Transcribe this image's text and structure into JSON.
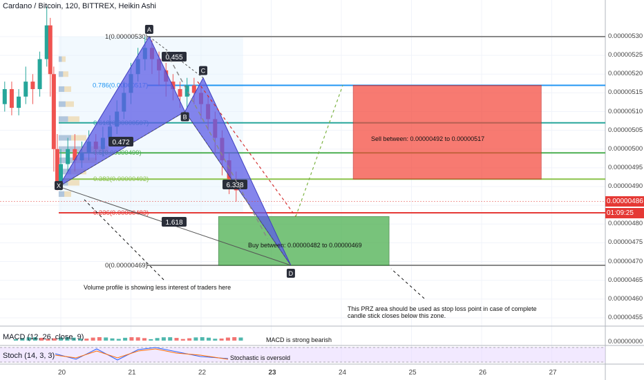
{
  "header": {
    "title": "Cardano / Bitcoin, 120, BITTREX, Heikin Ashi"
  },
  "y_axis": {
    "ticks": [
      "0.00000530",
      "0.00000525",
      "0.00000520",
      "0.00000515",
      "0.00000510",
      "0.00000505",
      "0.00000500",
      "0.00000495",
      "0.00000490",
      "0.00000485",
      "0.00000480",
      "0.00000475",
      "0.00000470",
      "0.00000465",
      "0.00000460",
      "0.00000455"
    ],
    "current_price": "0.00000486",
    "countdown": "01:09:25",
    "current_price_color": "#e53935"
  },
  "x_axis": {
    "ticks": [
      "20",
      "21",
      "22",
      "23",
      "24",
      "25",
      "26",
      "27"
    ]
  },
  "fib": {
    "levels": [
      {
        "label": "1(0.00000530)",
        "color": "#888888"
      },
      {
        "label": "0.786(0.00000517)",
        "color": "#2196f3"
      },
      {
        "label": "0.618(0.00000507)",
        "color": "#26a69a"
      },
      {
        "label": "0.5(0.00000499)",
        "color": "#4caf50"
      },
      {
        "label": "0.382(0.00000492)",
        "color": "#8bc34a"
      },
      {
        "label": "0.236(0.00000483)",
        "color": "#e53935"
      },
      {
        "label": "0(0.00000469)",
        "color": "#888888"
      }
    ]
  },
  "pattern": {
    "points": [
      "X",
      "A",
      "B",
      "C",
      "D"
    ],
    "ratios": [
      "0.455",
      "0.472",
      "6.338",
      "1.618"
    ],
    "fill_color": "#5c5ce6"
  },
  "zones": {
    "sell": {
      "label": "Sell between: 0.00000492 to 0.00000517",
      "color": "#f44336"
    },
    "buy": {
      "label": "Buy between: 0.00000482 to 0.00000469",
      "color": "#4caf50"
    }
  },
  "annotations": {
    "volume": "Volume profile is showing less interest of traders here",
    "prz_line1": "This PRZ area should be used as stop loss point in case of complete",
    "prz_line2": "candle stick closes below this zone.",
    "macd": "MACD is strong bearish",
    "stoch": "Stochastic is oversold"
  },
  "indicators": {
    "macd_label": "MACD (12, 26, close, 9)",
    "stoch_label": "Stoch (14, 3, 3)"
  },
  "chart_data": {
    "type": "candlestick",
    "title": "Cardano / Bitcoin, 120, BITTREX, Heikin Ashi",
    "xlabel": "",
    "ylabel": "",
    "ylim": [
      4.52e-06,
      5.35e-06
    ],
    "x_ticks": [
      "20",
      "21",
      "22",
      "23",
      "24",
      "25",
      "26",
      "27"
    ],
    "y_ticks": [
      5.3e-06,
      5.25e-06,
      5.2e-06,
      5.15e-06,
      5.1e-06,
      5.05e-06,
      5e-06,
      4.95e-06,
      4.9e-06,
      4.85e-06,
      4.8e-06,
      4.75e-06,
      4.7e-06,
      4.65e-06,
      4.6e-06,
      4.55e-06
    ],
    "fib_values": [
      5.3e-06,
      5.17e-06,
      5.07e-06,
      4.99e-06,
      4.92e-06,
      4.83e-06,
      4.69e-06
    ],
    "harmonic_points": [
      {
        "name": "X",
        "day": 19.97,
        "price": 4.9e-06
      },
      {
        "name": "A",
        "day": 21.26,
        "price": 5.3e-06
      },
      {
        "name": "B",
        "day": 21.77,
        "price": 5.1e-06
      },
      {
        "name": "C",
        "day": 22.03,
        "price": 5.19e-06
      },
      {
        "name": "D",
        "day": 23.28,
        "price": 4.69e-06
      }
    ],
    "sell_zone": {
      "from_day": 24.17,
      "to_day": 26.85,
      "low": 4.92e-06,
      "high": 5.17e-06
    },
    "buy_zone": {
      "from_day": 22.25,
      "to_day": 24.68,
      "low": 4.69e-06,
      "high": 4.82e-06
    },
    "current_price": 4.86e-06,
    "candles": [
      [
        19.1,
        5.08e-06,
        5.12e-06,
        5.14e-06,
        5.06e-06
      ],
      [
        19.2,
        5.12e-06,
        5.16e-06,
        5.18e-06,
        5.1e-06
      ],
      [
        19.3,
        5.16e-06,
        5.11e-06,
        5.18e-06,
        5.09e-06
      ],
      [
        19.4,
        5.11e-06,
        5.14e-06,
        5.16e-06,
        5.09e-06
      ],
      [
        19.5,
        5.14e-06,
        5.18e-06,
        5.22e-06,
        5.12e-06
      ],
      [
        19.6,
        5.18e-06,
        5.16e-06,
        5.2e-06,
        5.12e-06
      ],
      [
        19.7,
        5.16e-06,
        5.24e-06,
        5.26e-06,
        5.14e-06
      ],
      [
        19.8,
        5.24e-06,
        5.33e-06,
        5.38e-06,
        5.22e-06
      ],
      [
        19.85,
        5.33e-06,
        5.2e-06,
        5.35e-06,
        5.14e-06
      ],
      [
        19.9,
        5.2e-06,
        5e-06,
        5.22e-06,
        4.94e-06
      ],
      [
        19.95,
        5e-06,
        4.91e-06,
        5.04e-06,
        4.89e-06
      ],
      [
        20.0,
        4.91e-06,
        4.96e-06,
        5e-06,
        4.89e-06
      ],
      [
        20.1,
        4.96e-06,
        5e-06,
        5.03e-06,
        4.94e-06
      ],
      [
        20.2,
        5e-06,
        4.97e-06,
        5.04e-06,
        4.94e-06
      ],
      [
        20.3,
        4.97e-06,
        4.99e-06,
        5.02e-06,
        4.95e-06
      ],
      [
        20.4,
        4.99e-06,
        5.02e-06,
        5.05e-06,
        4.97e-06
      ],
      [
        20.5,
        5.02e-06,
        5e-06,
        5.04e-06,
        4.97e-06
      ],
      [
        20.6,
        5e-06,
        5.03e-06,
        5.06e-06,
        4.98e-06
      ],
      [
        20.7,
        5.03e-06,
        5.06e-06,
        5.09e-06,
        5.01e-06
      ],
      [
        20.8,
        5.06e-06,
        5.1e-06,
        5.13e-06,
        5.04e-06
      ],
      [
        20.9,
        5.1e-06,
        5.15e-06,
        5.18e-06,
        5.08e-06
      ],
      [
        21.0,
        5.15e-06,
        5.2e-06,
        5.23e-06,
        5.12e-06
      ],
      [
        21.1,
        5.2e-06,
        5.24e-06,
        5.27e-06,
        5.18e-06
      ],
      [
        21.2,
        5.24e-06,
        5.27e-06,
        5.3e-06,
        5.21e-06
      ],
      [
        21.3,
        5.27e-06,
        5.24e-06,
        5.29e-06,
        5.2e-06
      ],
      [
        21.4,
        5.24e-06,
        5.21e-06,
        5.26e-06,
        5.17e-06
      ],
      [
        21.5,
        5.21e-06,
        5.18e-06,
        5.23e-06,
        5.14e-06
      ],
      [
        21.6,
        5.18e-06,
        5.16e-06,
        5.2e-06,
        5.13e-06
      ],
      [
        21.7,
        5.16e-06,
        5.14e-06,
        5.18e-06,
        5.11e-06
      ],
      [
        21.8,
        5.14e-06,
        5.17e-06,
        5.19e-06,
        5.11e-06
      ],
      [
        21.9,
        5.17e-06,
        5.15e-06,
        5.19e-06,
        5.12e-06
      ],
      [
        22.0,
        5.15e-06,
        5.12e-06,
        5.17e-06,
        5.08e-06
      ],
      [
        22.1,
        5.12e-06,
        5.08e-06,
        5.14e-06,
        5.05e-06
      ],
      [
        22.2,
        5.08e-06,
        5.03e-06,
        5.1e-06,
        4.99e-06
      ],
      [
        22.3,
        5.03e-06,
        4.97e-06,
        5.05e-06,
        4.93e-06
      ],
      [
        22.4,
        4.97e-06,
        4.92e-06,
        4.99e-06,
        4.88e-06
      ],
      [
        22.5,
        4.92e-06,
        4.89e-06,
        4.94e-06,
        4.86e-06
      ]
    ]
  }
}
